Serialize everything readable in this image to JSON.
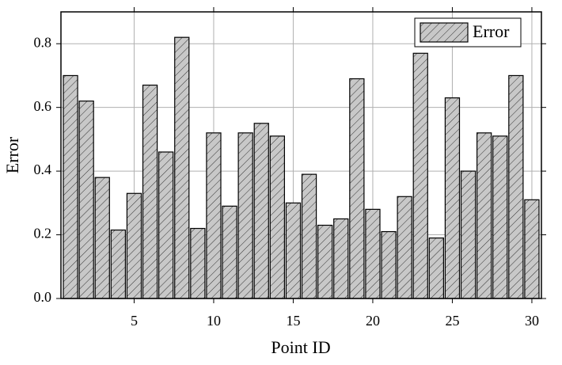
{
  "chart_data": {
    "type": "bar",
    "x_label": "Point ID",
    "y_label": "Error",
    "x": [
      1,
      2,
      3,
      4,
      5,
      6,
      7,
      8,
      9,
      10,
      11,
      12,
      13,
      14,
      15,
      16,
      17,
      18,
      19,
      20,
      21,
      22,
      23,
      24,
      25,
      26,
      27,
      28,
      29,
      30
    ],
    "series": [
      {
        "name": "Error",
        "color": "#c8c8c8",
        "values": [
          0.7,
          0.62,
          0.38,
          0.215,
          0.33,
          0.67,
          0.46,
          0.82,
          0.22,
          0.52,
          0.29,
          0.52,
          0.55,
          0.51,
          0.3,
          0.39,
          0.23,
          0.25,
          0.69,
          0.28,
          0.21,
          0.32,
          0.77,
          0.19,
          0.63,
          0.4,
          0.52,
          0.51,
          0.7,
          0.31
        ]
      }
    ],
    "xlim": [
      0.4,
      30.6
    ],
    "ylim": [
      0,
      0.9
    ],
    "xticks": [
      5,
      10,
      15,
      20,
      25,
      30
    ],
    "yticks": [
      {
        "value": 0,
        "label": "0.0"
      },
      {
        "value": 0.2,
        "label": "0.2"
      },
      {
        "value": 0.4,
        "label": "0.4"
      },
      {
        "value": 0.6,
        "label": "0.6"
      },
      {
        "value": 0.8,
        "label": "0.8"
      }
    ],
    "grid": true,
    "legend": "upper right"
  }
}
